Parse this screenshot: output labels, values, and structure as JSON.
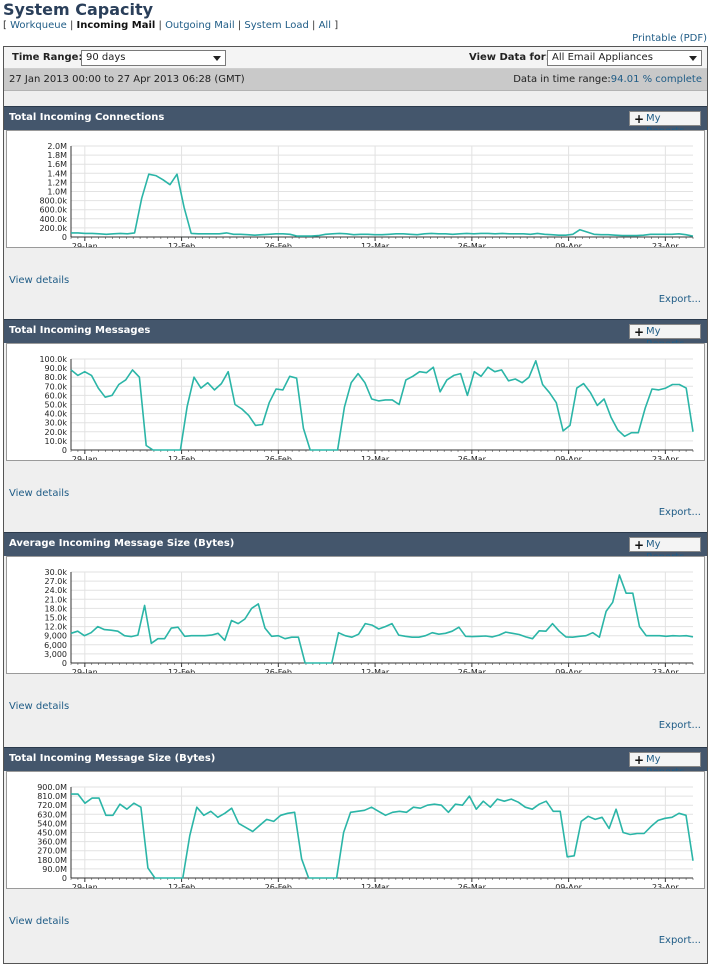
{
  "page": {
    "title": "System Capacity",
    "printable": "Printable (PDF)"
  },
  "nav": {
    "open_bracket": "[",
    "close_bracket": "]",
    "separator": "|",
    "items": [
      {
        "label": "Workqueue",
        "current": false
      },
      {
        "label": "Incoming Mail",
        "current": true
      },
      {
        "label": "Outgoing Mail",
        "current": false
      },
      {
        "label": "System Load",
        "current": false
      },
      {
        "label": "All",
        "current": false
      }
    ]
  },
  "filters": {
    "time_range_label": "Time Range:",
    "time_range_value": "90 days",
    "view_data_label": "View Data for:",
    "view_data_value": "All Email Appliances"
  },
  "date_bar": {
    "range_text": "27 Jan 2013 00:00 to 27 Apr 2013 06:28 (GMT)",
    "completeness_label": "Data in time range:",
    "completeness_value": "94.01 % complete"
  },
  "panel_common": {
    "my_reports_label": "My Reports",
    "view_details_label": "View details",
    "export_label": "Export..."
  },
  "colors": {
    "line": "#2bb5a7",
    "panel_header": "#44566c",
    "link": "#1f5c86"
  },
  "chart_data": [
    {
      "type": "line",
      "title": "Total Incoming Connections",
      "x_tick_labels": [
        "29-Jan",
        "12-Feb",
        "26-Feb",
        "12-Mar",
        "26-Mar",
        "09-Apr",
        "23-Apr"
      ],
      "y_tick_labels": [
        "0",
        "200.0k",
        "400.0k",
        "600.0k",
        "800.0k",
        "1.0M",
        "1.2M",
        "1.4M",
        "1.6M",
        "1.8M",
        "2.0M"
      ],
      "ylim": [
        0,
        2000000
      ],
      "grid": true,
      "x_start": "2013-01-27",
      "x_end": "2013-04-27",
      "values": [
        90000,
        90000,
        80000,
        80000,
        70000,
        60000,
        70000,
        80000,
        70000,
        90000,
        850000,
        1380000,
        1350000,
        1260000,
        1150000,
        1380000,
        650000,
        80000,
        70000,
        70000,
        70000,
        70000,
        90000,
        60000,
        60000,
        50000,
        40000,
        50000,
        60000,
        70000,
        70000,
        60000,
        20000,
        20000,
        20000,
        30000,
        60000,
        70000,
        80000,
        70000,
        50000,
        60000,
        60000,
        50000,
        50000,
        60000,
        70000,
        70000,
        60000,
        50000,
        70000,
        80000,
        70000,
        70000,
        60000,
        70000,
        80000,
        70000,
        80000,
        80000,
        70000,
        80000,
        70000,
        70000,
        70000,
        60000,
        80000,
        60000,
        50000,
        40000,
        40000,
        60000,
        160000,
        110000,
        60000,
        50000,
        50000,
        40000,
        30000,
        30000,
        30000,
        40000,
        60000,
        60000,
        60000,
        60000,
        70000,
        50000,
        20000
      ]
    },
    {
      "type": "line",
      "title": "Total Incoming Messages",
      "x_tick_labels": [
        "29-Jan",
        "12-Feb",
        "26-Feb",
        "12-Mar",
        "26-Mar",
        "09-Apr",
        "23-Apr"
      ],
      "y_tick_labels": [
        "0",
        "10.0k",
        "20.0k",
        "30.0k",
        "40.0k",
        "50.0k",
        "60.0k",
        "70.0k",
        "80.0k",
        "90.0k",
        "100.0k"
      ],
      "ylim": [
        0,
        100000
      ],
      "grid": true,
      "x_start": "2013-01-27",
      "x_end": "2013-04-27",
      "values": [
        88000,
        82000,
        86000,
        82000,
        68000,
        58000,
        60000,
        72000,
        77000,
        88000,
        80000,
        5000,
        0,
        0,
        0,
        0,
        0,
        48000,
        80000,
        68000,
        74000,
        66000,
        73000,
        86000,
        50000,
        45000,
        38000,
        27000,
        28000,
        52000,
        67000,
        66000,
        81000,
        79000,
        24000,
        0,
        0,
        0,
        0,
        0,
        47000,
        74000,
        84000,
        74000,
        56000,
        54000,
        55000,
        55000,
        50000,
        77000,
        81000,
        86000,
        85000,
        91000,
        64000,
        77000,
        82000,
        84000,
        60000,
        86000,
        81000,
        91000,
        86000,
        88000,
        76000,
        78000,
        74000,
        80000,
        98000,
        72000,
        63000,
        52000,
        21000,
        27000,
        68000,
        73000,
        63000,
        49000,
        56000,
        36000,
        22000,
        15000,
        19000,
        19000,
        46000,
        67000,
        66000,
        68000,
        72000,
        72000,
        68000,
        20000
      ]
    },
    {
      "type": "line",
      "title": "Average Incoming Message Size (Bytes)",
      "x_tick_labels": [
        "29-Jan",
        "12-Feb",
        "26-Feb",
        "12-Mar",
        "26-Mar",
        "09-Apr",
        "23-Apr"
      ],
      "y_tick_labels": [
        "0",
        "3,000",
        "6,000",
        "9,000",
        "12.0k",
        "15.0k",
        "18.0k",
        "21.0k",
        "24.0k",
        "27.0k",
        "30.0k"
      ],
      "ylim": [
        0,
        30000
      ],
      "grid": true,
      "x_start": "2013-01-27",
      "x_end": "2013-04-27",
      "values": [
        9800,
        10500,
        9000,
        10000,
        12000,
        11000,
        10800,
        10500,
        9000,
        8700,
        9200,
        19000,
        6500,
        8000,
        8000,
        11500,
        11800,
        8800,
        9000,
        9000,
        9000,
        9200,
        9800,
        7500,
        14000,
        13000,
        14500,
        18000,
        19500,
        11500,
        8800,
        9000,
        8000,
        8500,
        8500,
        0,
        0,
        0,
        0,
        0,
        10000,
        9000,
        8500,
        9500,
        13000,
        12500,
        11200,
        12000,
        13000,
        9200,
        8800,
        8500,
        8500,
        9000,
        10000,
        9500,
        9800,
        10500,
        11800,
        8800,
        8700,
        8800,
        8900,
        8600,
        9200,
        10200,
        9800,
        9400,
        8600,
        8000,
        10600,
        10500,
        13000,
        10500,
        8600,
        8500,
        8800,
        9000,
        10000,
        8500,
        17000,
        20000,
        29000,
        23000,
        23000,
        12000,
        9000,
        9000,
        9000,
        8800,
        9000,
        8900,
        9000,
        8600
      ]
    },
    {
      "type": "line",
      "title": "Total Incoming Message Size (Bytes)",
      "x_tick_labels": [
        "29-Jan",
        "12-Feb",
        "26-Feb",
        "12-Mar",
        "26-Mar",
        "09-Apr",
        "23-Apr"
      ],
      "y_tick_labels": [
        "0",
        "90.0M",
        "180.0M",
        "270.0M",
        "360.0M",
        "450.0M",
        "540.0M",
        "630.0M",
        "720.0M",
        "810.0M",
        "900.0M"
      ],
      "ylim": [
        0,
        900000000
      ],
      "grid": true,
      "x_start": "2013-01-27",
      "x_end": "2013-04-27",
      "values": [
        830000000,
        830000000,
        740000000,
        790000000,
        790000000,
        620000000,
        620000000,
        730000000,
        680000000,
        740000000,
        700000000,
        100000000,
        0,
        0,
        0,
        0,
        0,
        420000000,
        700000000,
        620000000,
        660000000,
        600000000,
        640000000,
        690000000,
        540000000,
        500000000,
        460000000,
        520000000,
        580000000,
        560000000,
        620000000,
        640000000,
        650000000,
        190000000,
        0,
        0,
        0,
        0,
        0,
        450000000,
        650000000,
        660000000,
        670000000,
        700000000,
        660000000,
        620000000,
        650000000,
        660000000,
        650000000,
        700000000,
        690000000,
        720000000,
        730000000,
        720000000,
        650000000,
        730000000,
        720000000,
        810000000,
        680000000,
        760000000,
        700000000,
        780000000,
        760000000,
        780000000,
        750000000,
        700000000,
        680000000,
        730000000,
        760000000,
        660000000,
        660000000,
        210000000,
        220000000,
        560000000,
        610000000,
        580000000,
        600000000,
        490000000,
        680000000,
        450000000,
        430000000,
        440000000,
        440000000,
        510000000,
        570000000,
        590000000,
        600000000,
        640000000,
        620000000,
        170000000
      ]
    }
  ]
}
